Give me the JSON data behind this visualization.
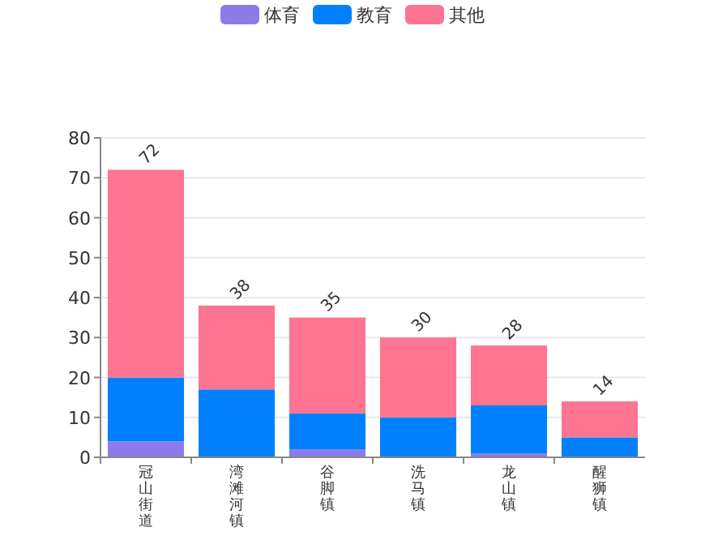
{
  "chart_data": {
    "type": "bar",
    "stacked": true,
    "categories": [
      "冠山街道",
      "湾滩河镇",
      "谷脚镇",
      "洗马镇",
      "龙山镇",
      "醒狮镇"
    ],
    "series": [
      {
        "name": "体育",
        "color": "#8a7be8",
        "values": [
          4,
          0,
          2,
          0,
          1,
          0
        ]
      },
      {
        "name": "教育",
        "color": "#0080ff",
        "values": [
          16,
          17,
          9,
          10,
          12,
          5
        ]
      },
      {
        "name": "其他",
        "color": "#fe7491",
        "values": [
          52,
          21,
          24,
          20,
          15,
          9
        ]
      }
    ],
    "totals": [
      "72",
      "38",
      "35",
      "30",
      "28",
      "14"
    ],
    "ylim": [
      0,
      80
    ],
    "yticks": [
      0,
      10,
      20,
      30,
      40,
      50,
      60,
      70,
      80
    ],
    "grid": "y",
    "legend": "top"
  }
}
